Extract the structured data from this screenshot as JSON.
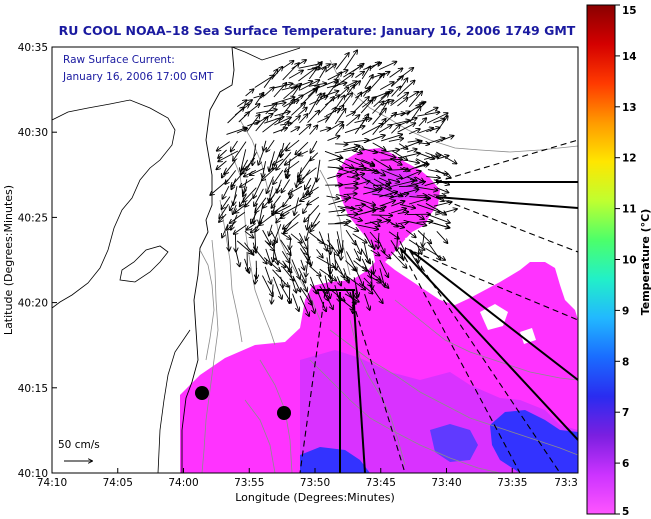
{
  "title": "RU COOL  NOAA–18  Sea Surface Temperature:  January 16, 2006 1749 GMT",
  "annotation_line1": "Raw Surface Current:",
  "annotation_line2": "January 16, 2006 17:00 GMT",
  "scale_label": "50 cm/s",
  "x_axis_label": "Longitude (Degrees:Minutes)",
  "y_axis_label": "Latitude (Degrees:Minutes)",
  "x_ticks": [
    "74:10",
    "74:05",
    "74:00",
    "73:55",
    "73:50",
    "73:45",
    "73:40",
    "73:35",
    "73:3"
  ],
  "y_ticks": [
    "40:35",
    "40:30",
    "40:25",
    "40:20",
    "40:15",
    "40:10"
  ],
  "colorbar": {
    "label": "Temperature (°C)",
    "ticks": [
      "15",
      "14",
      "13",
      "12",
      "11",
      "10",
      "9",
      "8",
      "7",
      "6",
      "5"
    ],
    "min": 5,
    "max": 15,
    "colors": [
      "#ff55ff",
      "#cc33ff",
      "#7b1fe0",
      "#2a2cf0",
      "#1a6cff",
      "#22b8ff",
      "#22f0c8",
      "#4cff6a",
      "#bfff30",
      "#ffe600",
      "#ff9a00",
      "#ff3a00",
      "#d40000",
      "#8a0000"
    ]
  },
  "colors": {
    "title_text": "#1a1aa0",
    "sst_primary": "#ff33ff",
    "sst_secondary": "#cc33ff",
    "sst_cold": "#3333ff",
    "land_gray": "#808080"
  }
}
